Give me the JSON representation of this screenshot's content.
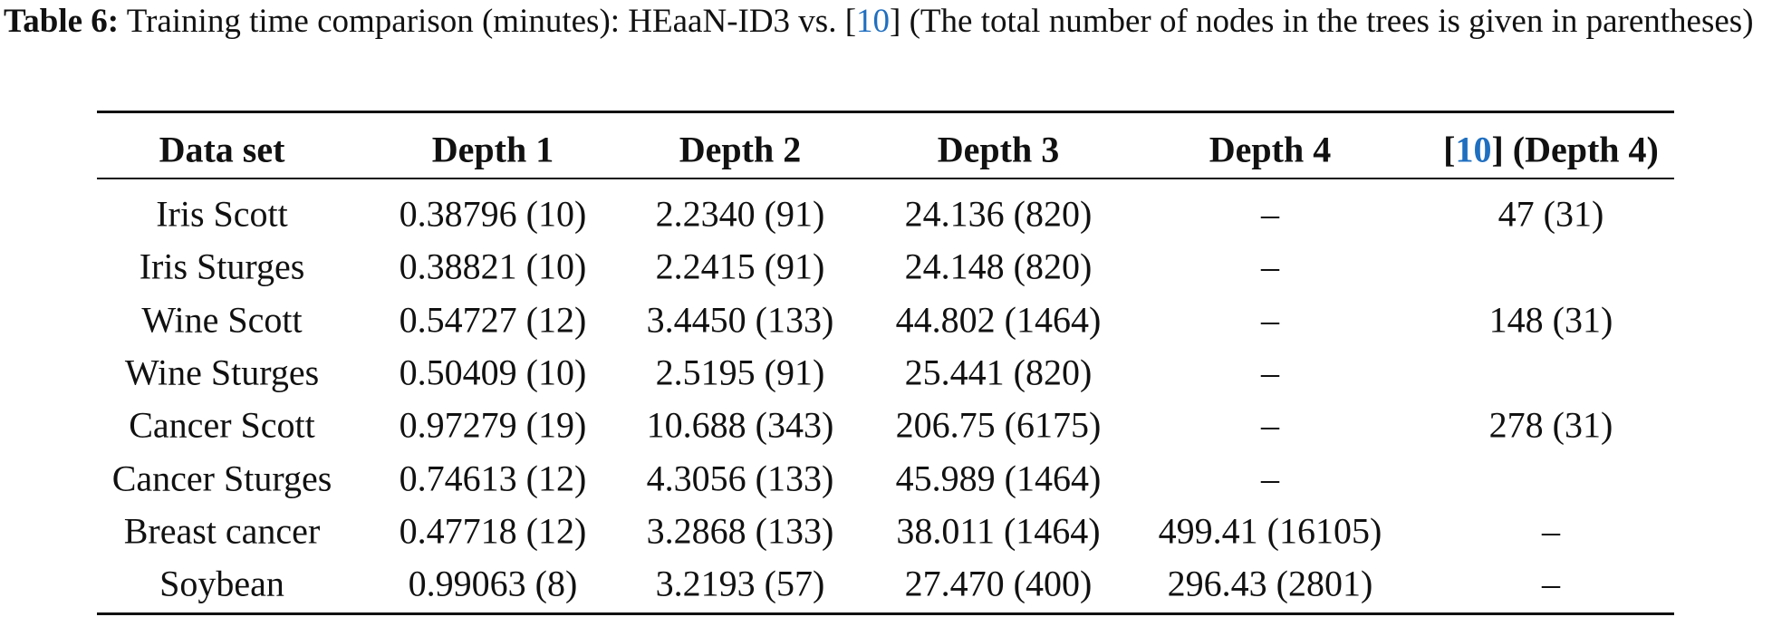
{
  "caption": {
    "label": "Table 6:",
    "before": "Training time comparison (minutes): HEaaN-ID3 vs. [",
    "ref": "10",
    "after": "] (The total number of nodes in the trees is given in parentheses)"
  },
  "table": {
    "header": [
      "Data set",
      "Depth 1",
      "Depth 2",
      "Depth 3",
      "Depth 4",
      {
        "before": "[",
        "ref": "10",
        "after": "] (Depth 4)"
      }
    ],
    "rows": [
      [
        "Iris Scott",
        "0.38796 (10)",
        "2.2340 (91)",
        "24.136 (820)",
        "–",
        "47 (31)"
      ],
      [
        "Iris Sturges",
        "0.38821 (10)",
        "2.2415 (91)",
        "24.148 (820)",
        "–",
        null
      ],
      [
        "Wine Scott",
        "0.54727 (12)",
        "3.4450 (133)",
        "44.802 (1464)",
        "–",
        "148 (31)"
      ],
      [
        "Wine Sturges",
        "0.50409 (10)",
        "2.5195 (91)",
        "25.441 (820)",
        "–",
        null
      ],
      [
        "Cancer Scott",
        "0.97279 (19)",
        "10.688 (343)",
        "206.75 (6175)",
        "–",
        "278 (31)"
      ],
      [
        "Cancer Sturges",
        "0.74613 (12)",
        "4.3056 (133)",
        "45.989 (1464)",
        "–",
        null
      ],
      [
        "Breast cancer",
        "0.47718 (12)",
        "3.2868 (133)",
        "38.011 (1464)",
        "499.41 (16105)",
        "–"
      ],
      [
        "Soybean",
        "0.99063 (8)",
        "3.2193 (57)",
        "27.470 (400)",
        "296.43 (2801)",
        "–"
      ]
    ]
  }
}
